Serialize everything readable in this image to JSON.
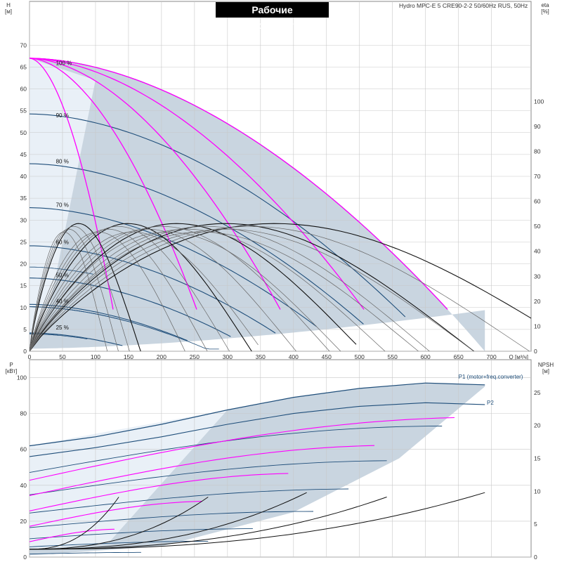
{
  "title": "Рабочие характеристики",
  "model": "Hydro MPC-E 5 CRE90-2-2 50/60Hz RUS, 50Hz",
  "colors": {
    "envelope": "#c9d5e0",
    "envelope_light": "#e9f0f7",
    "grid": "#c8c8c8",
    "speed_curve": "#1f4e7a",
    "pump_count_curve": "#ff00ff",
    "eta_curve": "#111111",
    "eta_thin": "#666666"
  },
  "chart_data": [
    {
      "id": "qh",
      "type": "line",
      "xlabel": "Q [м³/ч]",
      "ylabel_left": "H\n[м]",
      "ylabel_right": "eta\n[%]",
      "xlim": [
        0,
        760
      ],
      "ylim": [
        0,
        80
      ],
      "ylim_right": [
        0,
        140
      ],
      "x_ticks": [
        0,
        50,
        100,
        150,
        200,
        250,
        300,
        350,
        400,
        450,
        500,
        550,
        600,
        650,
        700
      ],
      "x_ticks_label": [
        "0",
        "50",
        "100",
        "150",
        "200",
        "250",
        "300",
        "350",
        "400",
        "450",
        "500",
        "550",
        "600",
        "650",
        "700"
      ],
      "y_ticks": [
        0,
        5,
        10,
        15,
        20,
        25,
        30,
        35,
        40,
        45,
        50,
        55,
        60,
        65,
        70
      ],
      "y_ticks_label": [
        "0",
        "5",
        "10",
        "15",
        "20",
        "25",
        "30",
        "35",
        "40",
        "45",
        "50",
        "55",
        "60",
        "65",
        "70"
      ],
      "y_right_ticks": [
        0,
        10,
        20,
        30,
        40,
        50,
        60,
        70,
        80,
        90,
        100
      ],
      "y_right_ticks_label": [
        "0",
        "10",
        "20",
        "30",
        "40",
        "50",
        "60",
        "70",
        "80",
        "90",
        "100"
      ],
      "speed_labels": [
        {
          "text": "100 %",
          "x": 40,
          "y": 65
        },
        {
          "text": "90 %",
          "x": 40,
          "y": 53
        },
        {
          "text": "80 %",
          "x": 40,
          "y": 42.5
        },
        {
          "text": "70 %",
          "x": 40,
          "y": 32.5
        },
        {
          "text": "60 %",
          "x": 40,
          "y": 24
        },
        {
          "text": "50 %",
          "x": 40,
          "y": 16.5
        },
        {
          "text": "40 %",
          "x": 40,
          "y": 10.5
        },
        {
          "text": "25 %",
          "x": 40,
          "y": 4.5
        }
      ],
      "max_flow_per_pump": 138,
      "shutoff_head_100": 67,
      "curve_exponent": 1.8,
      "pump_counts": [
        1,
        2,
        3,
        4,
        5
      ],
      "speeds": [
        1.0,
        0.9,
        0.8,
        0.7,
        0.6,
        0.5,
        0.4,
        0.25
      ]
    },
    {
      "id": "power",
      "type": "line",
      "ylabel_left": "P\n[кВт]",
      "ylabel_right": "NPSH\n[м]",
      "xlim": [
        0,
        760
      ],
      "ylim": [
        0,
        110
      ],
      "ylim_right": [
        0,
        30
      ],
      "y_ticks": [
        0,
        20,
        40,
        60,
        80,
        100
      ],
      "y_ticks_label": [
        "0",
        "20",
        "40",
        "60",
        "80",
        "100"
      ],
      "y_right_ticks": [
        0,
        5,
        10,
        15,
        20,
        25
      ],
      "y_right_ticks_label": [
        "0",
        "5",
        "10",
        "15",
        "20",
        "25"
      ],
      "series_labels": [
        {
          "text": "P1 (motor+freq.converter)",
          "x": 650,
          "y": 99.5
        },
        {
          "text": "P2",
          "x": 693,
          "y": 85
        }
      ],
      "p1_max": [
        {
          "x": 0,
          "y": 62
        },
        {
          "x": 100,
          "y": 67
        },
        {
          "x": 200,
          "y": 74
        },
        {
          "x": 300,
          "y": 82
        },
        {
          "x": 400,
          "y": 89
        },
        {
          "x": 500,
          "y": 94
        },
        {
          "x": 600,
          "y": 97
        },
        {
          "x": 690,
          "y": 96
        }
      ],
      "p2_max": [
        {
          "x": 0,
          "y": 56
        },
        {
          "x": 100,
          "y": 61
        },
        {
          "x": 200,
          "y": 67
        },
        {
          "x": 300,
          "y": 74
        },
        {
          "x": 400,
          "y": 80
        },
        {
          "x": 500,
          "y": 84
        },
        {
          "x": 600,
          "y": 86
        },
        {
          "x": 690,
          "y": 85
        }
      ]
    }
  ]
}
